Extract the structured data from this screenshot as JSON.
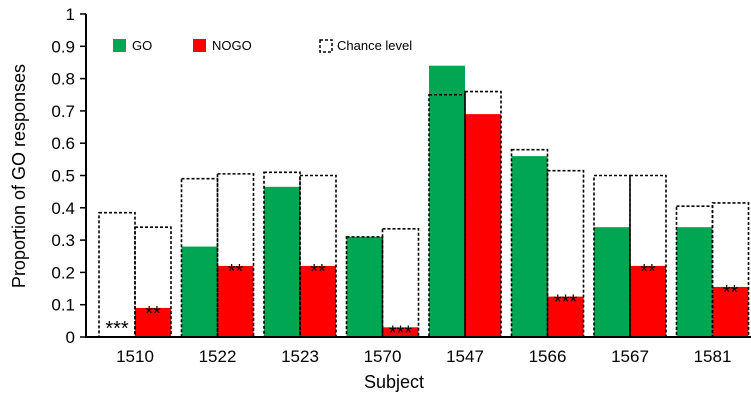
{
  "chart_data": {
    "type": "bar",
    "xlabel": "Subject",
    "ylabel": "Proportion of GO responses",
    "ylim": [
      0,
      1
    ],
    "yticks": [
      "0",
      "0.1",
      "0.2",
      "0.3",
      "0.4",
      "0.5",
      "0.6",
      "0.7",
      "0.8",
      "0.9",
      "1"
    ],
    "categories": [
      "1510",
      "1522",
      "1523",
      "1570",
      "1547",
      "1566",
      "1567",
      "1581"
    ],
    "series": [
      {
        "name": "GO",
        "color": "#00a651",
        "values": [
          0.0,
          0.28,
          0.465,
          0.31,
          0.84,
          0.56,
          0.34,
          0.34
        ]
      },
      {
        "name": "NOGO",
        "color": "#ff0000",
        "values": [
          0.09,
          0.22,
          0.22,
          0.03,
          0.69,
          0.125,
          0.22,
          0.155
        ]
      }
    ],
    "chance_level": {
      "name": "Chance level",
      "go": [
        0.385,
        0.49,
        0.51,
        0.31,
        0.75,
        0.58,
        0.5,
        0.405
      ],
      "nogo": [
        0.34,
        0.505,
        0.5,
        0.335,
        0.76,
        0.515,
        0.5,
        0.415
      ]
    },
    "significance": {
      "go": [
        "***",
        "",
        "",
        "",
        "",
        "",
        "",
        ""
      ],
      "nogo": [
        "**",
        "**",
        "**",
        "***",
        "",
        "***",
        "**",
        "**"
      ]
    },
    "legend_position": "top-left",
    "grid": false
  }
}
